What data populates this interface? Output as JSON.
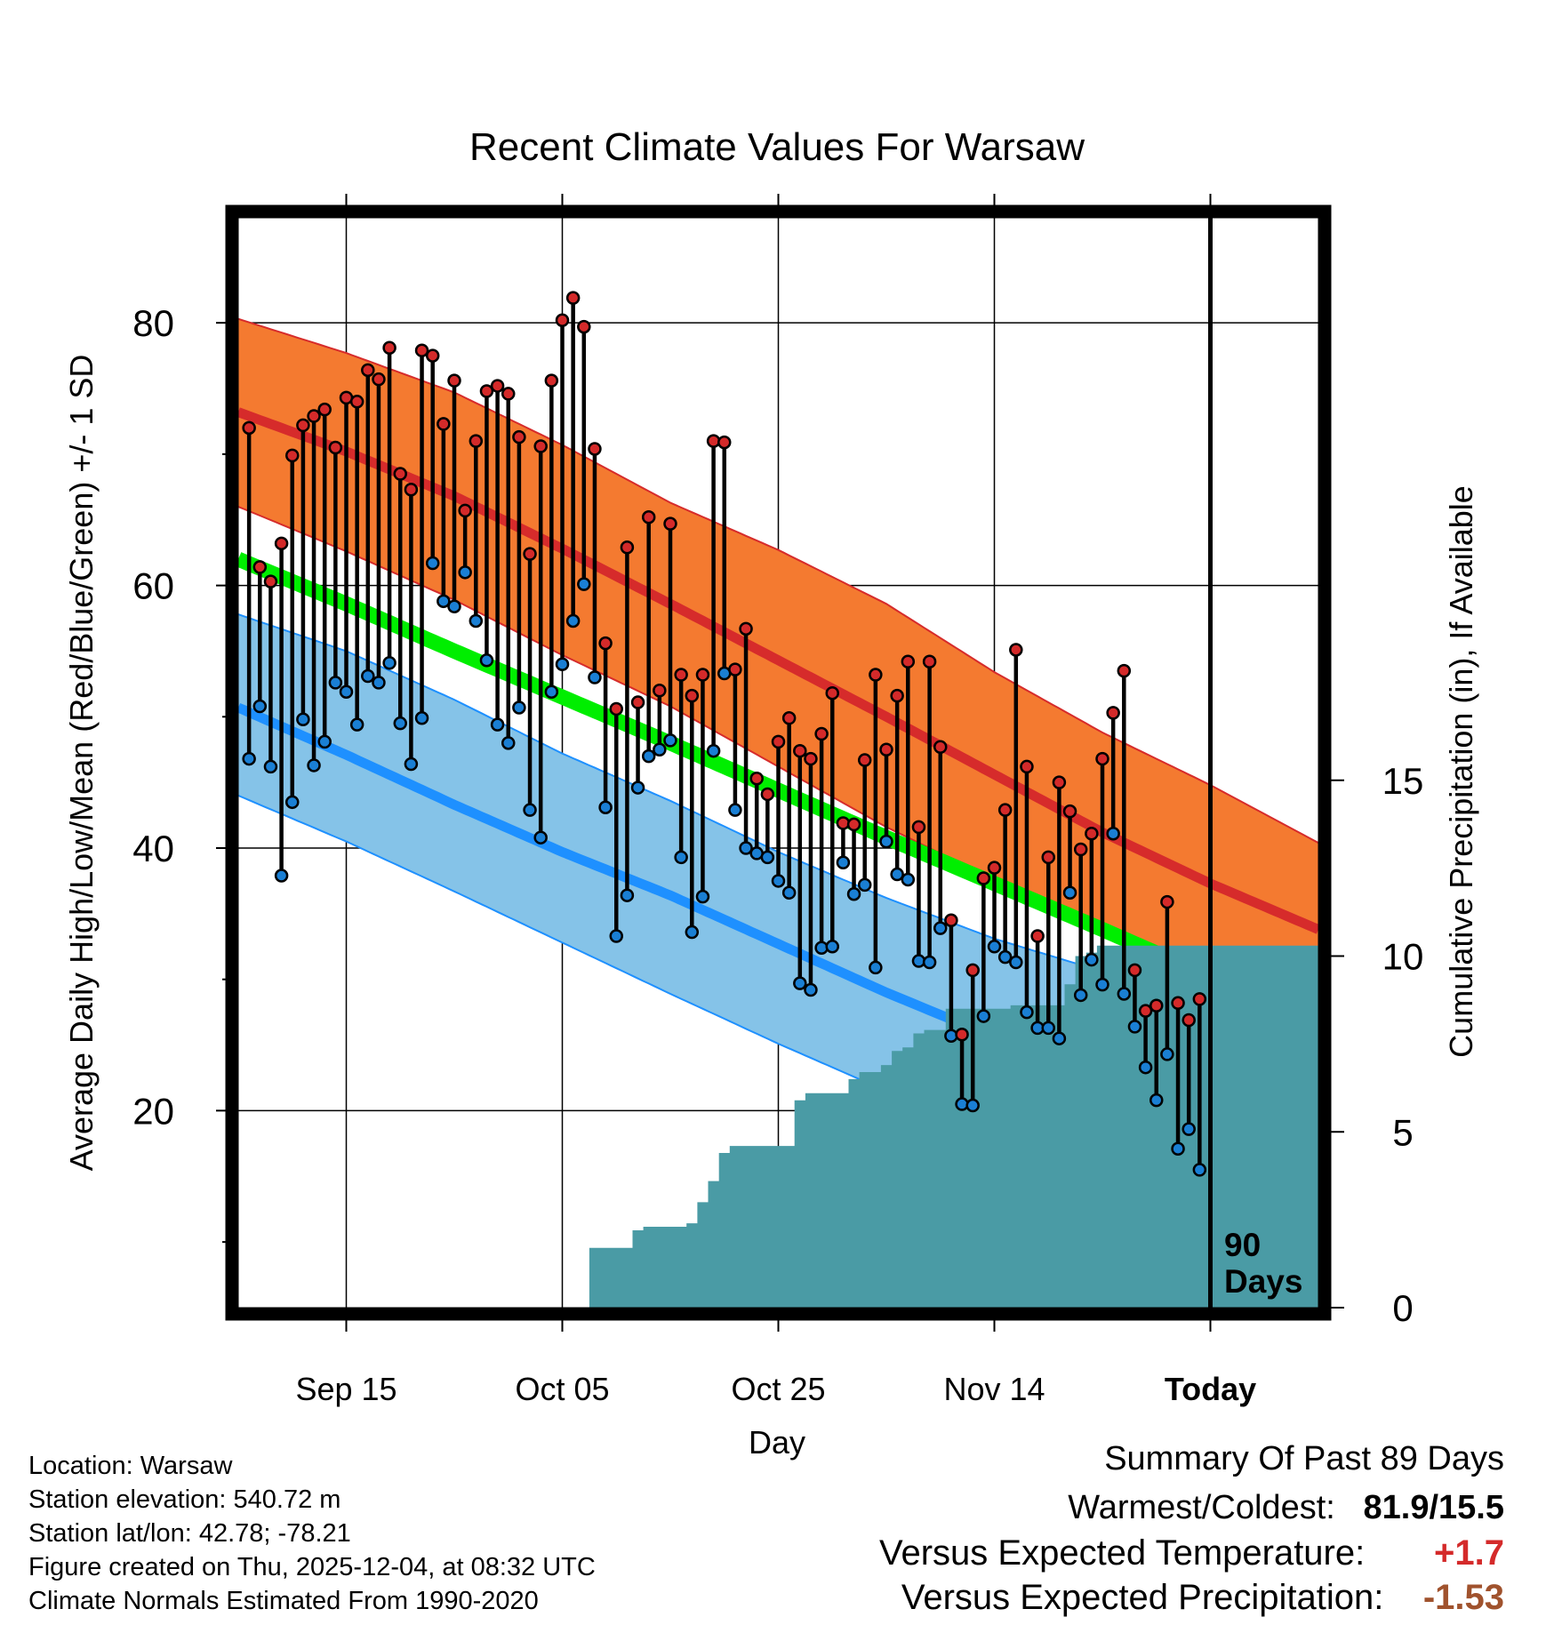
{
  "chart_data": {
    "type": "line",
    "title": "Recent Climate Values For Warsaw",
    "xlabel": "Day",
    "ylabel": "Average Daily High/Low/Mean (Red/Blue/Green) +/- 1 SD",
    "y2label": "Cumulative Precipitation (in), If Available",
    "ylim": [
      5,
      88
    ],
    "y2lim": [
      0,
      31
    ],
    "yticks": [
      20,
      40,
      60,
      80
    ],
    "yticks_minor": [
      10,
      30,
      50,
      70
    ],
    "y2ticks": [
      0,
      5,
      10,
      15
    ],
    "day_range": [
      0,
      100
    ],
    "xtick_days": [
      10,
      30,
      50,
      70,
      90
    ],
    "xtick_labels": [
      "Sep 15",
      "Oct 05",
      "Oct 25",
      "Nov 14",
      "Today"
    ],
    "today_day": 90,
    "today_label": [
      "90",
      "Days"
    ],
    "normals": {
      "knot_days": [
        0,
        10,
        20,
        30,
        40,
        50,
        60,
        70,
        80,
        90,
        100
      ],
      "high_mean": [
        73.2,
        70.2,
        66.8,
        62.8,
        58.6,
        54.3,
        50.0,
        45.6,
        41.2,
        37.3,
        33.8
      ],
      "high_sd_upper": [
        80.3,
        77.7,
        74.7,
        70.7,
        66.3,
        62.7,
        58.6,
        53.4,
        48.8,
        44.8,
        40.4
      ],
      "high_sd_lower": [
        66.0,
        62.6,
        58.9,
        54.7,
        50.8,
        46.2,
        41.6,
        37.6,
        33.6,
        29.8,
        25.4
      ],
      "mean": [
        62.0,
        58.6,
        55.0,
        51.5,
        48.0,
        44.4,
        40.8,
        37.3,
        33.8,
        30.2,
        26.6
      ],
      "low_mean": [
        50.7,
        47.1,
        43.3,
        39.7,
        36.4,
        32.7,
        29.0,
        25.6,
        22.2,
        19.0,
        15.9
      ],
      "low_sd_upper": [
        57.8,
        55.0,
        51.3,
        47.2,
        43.6,
        39.7,
        36.2,
        33.1,
        30.6,
        28.5,
        25.9
      ],
      "low_sd_lower": [
        44.0,
        40.5,
        36.7,
        32.8,
        28.9,
        25.1,
        21.5,
        17.9,
        14.3,
        10.9,
        7.5
      ]
    },
    "series": [
      {
        "name": "Daily High",
        "color": "#d42a2a",
        "values": [
          72.0,
          61.4,
          60.3,
          63.2,
          69.9,
          72.2,
          72.9,
          73.4,
          70.5,
          74.3,
          74.0,
          76.4,
          75.7,
          78.1,
          68.5,
          67.3,
          77.9,
          77.5,
          72.3,
          75.6,
          65.7,
          71.0,
          74.8,
          75.2,
          74.6,
          71.3,
          62.4,
          70.6,
          75.6,
          80.2,
          81.9,
          79.7,
          70.4,
          55.6,
          50.6,
          62.9,
          51.1,
          65.2,
          52.0,
          64.7,
          53.2,
          51.6,
          53.2,
          71.0,
          70.9,
          53.6,
          56.7,
          45.3,
          44.1,
          48.1,
          49.9,
          47.4,
          46.8,
          48.7,
          51.8,
          41.9,
          41.8,
          46.7,
          53.2,
          47.5,
          51.6,
          54.2,
          41.6,
          54.2,
          47.7,
          34.5,
          25.8,
          30.7,
          37.7,
          38.5,
          42.9,
          55.1,
          46.2,
          33.3,
          39.3,
          45.0,
          42.8,
          39.9,
          41.1,
          46.8,
          50.3,
          53.5,
          30.7,
          27.6,
          28.0,
          35.9,
          28.2,
          26.9,
          28.5
        ]
      },
      {
        "name": "Daily Low",
        "color": "#1a7fd4",
        "values": [
          46.8,
          50.8,
          46.2,
          37.9,
          43.5,
          49.8,
          46.3,
          48.1,
          52.6,
          51.9,
          49.4,
          53.1,
          52.6,
          54.1,
          49.5,
          46.4,
          49.9,
          61.7,
          58.8,
          58.4,
          61.0,
          57.3,
          54.3,
          49.4,
          48.0,
          50.7,
          42.9,
          40.8,
          51.9,
          54.0,
          57.3,
          60.1,
          53.0,
          43.1,
          33.3,
          36.4,
          44.6,
          47.0,
          47.5,
          48.2,
          39.3,
          33.6,
          36.3,
          47.4,
          53.3,
          42.9,
          40.0,
          39.6,
          39.3,
          37.5,
          36.6,
          29.7,
          29.2,
          32.4,
          32.5,
          38.9,
          36.5,
          37.2,
          30.9,
          40.5,
          38.0,
          37.6,
          31.4,
          31.3,
          33.9,
          25.7,
          20.5,
          20.4,
          27.2,
          32.5,
          31.7,
          31.3,
          27.5,
          26.3,
          26.3,
          25.5,
          36.6,
          28.8,
          31.5,
          29.6,
          41.1,
          28.9,
          26.4,
          23.3,
          20.8,
          24.3,
          17.1,
          18.6,
          15.5
        ]
      }
    ],
    "precip": {
      "day_start": 31.5,
      "values": [
        0.0,
        1.7,
        1.7,
        1.7,
        1.7,
        2.2,
        2.3,
        2.3,
        2.3,
        2.3,
        2.4,
        3.0,
        3.6,
        4.4,
        4.6,
        4.6,
        4.6,
        4.6,
        4.6,
        4.6,
        5.9,
        6.1,
        6.1,
        6.1,
        6.1,
        6.5,
        6.7,
        6.7,
        6.9,
        7.3,
        7.4,
        7.8,
        7.9,
        7.9,
        8.5,
        8.5,
        8.5,
        8.5,
        8.5,
        8.5,
        8.6,
        8.6,
        8.6,
        8.6,
        8.6,
        9.2,
        10.0,
        10.1,
        10.3,
        10.3,
        10.3,
        10.3,
        10.3,
        10.3,
        10.3,
        10.3,
        10.3,
        10.3,
        10.3,
        10.3,
        10.3,
        10.3,
        10.3,
        10.3,
        10.3,
        10.3,
        10.3,
        10.3,
        10.3,
        10.3
      ]
    }
  },
  "info": {
    "location": "Location: Warsaw",
    "elevation": "Station elevation: 540.72 m",
    "latlon": "Station lat/lon: 42.78; -78.21",
    "created": "Figure created on Thu, 2025-12-04, at 08:32 UTC",
    "normals": "Climate Normals Estimated From 1990-2020"
  },
  "summary": {
    "heading": "Summary Of Past 89 Days",
    "warm_cold_label": "Warmest/Coldest:",
    "warm_cold_value": "81.9/15.5",
    "temp_label": "Versus Expected Temperature:",
    "temp_value": "+1.7",
    "precip_label": "Versus Expected Precipitation:",
    "precip_value": "-1.53",
    "temp_color": "#d42a2a",
    "precip_color": "#a0522d"
  },
  "colors": {
    "high_band": "#f47a30",
    "high_line": "#d62b2b",
    "low_band": "#85c3e8",
    "low_line": "#1e90ff",
    "mean_line": "#00ee00",
    "overlap": "#9b1111",
    "precip": "#4a9ba5"
  }
}
